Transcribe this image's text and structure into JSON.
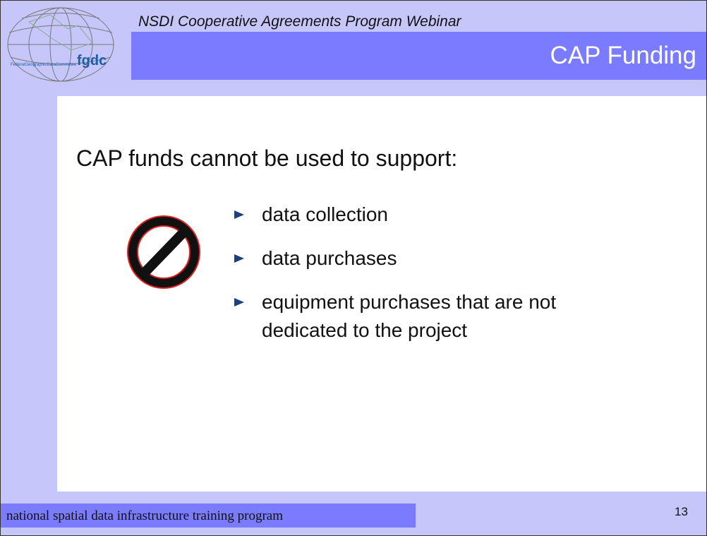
{
  "header": {
    "subtitle": "NSDI Cooperative Agreements Program Webinar",
    "title": "CAP Funding"
  },
  "logo": {
    "acronym": "fgdc",
    "name": "FederalGeographicDataCommittee"
  },
  "content": {
    "heading": "CAP funds cannot be used to support:",
    "bullets": [
      "data collection",
      "data purchases",
      "equipment purchases that are not dedicated to the project"
    ]
  },
  "footer": {
    "text": "national spatial data infrastructure training program",
    "page_number": 13
  }
}
